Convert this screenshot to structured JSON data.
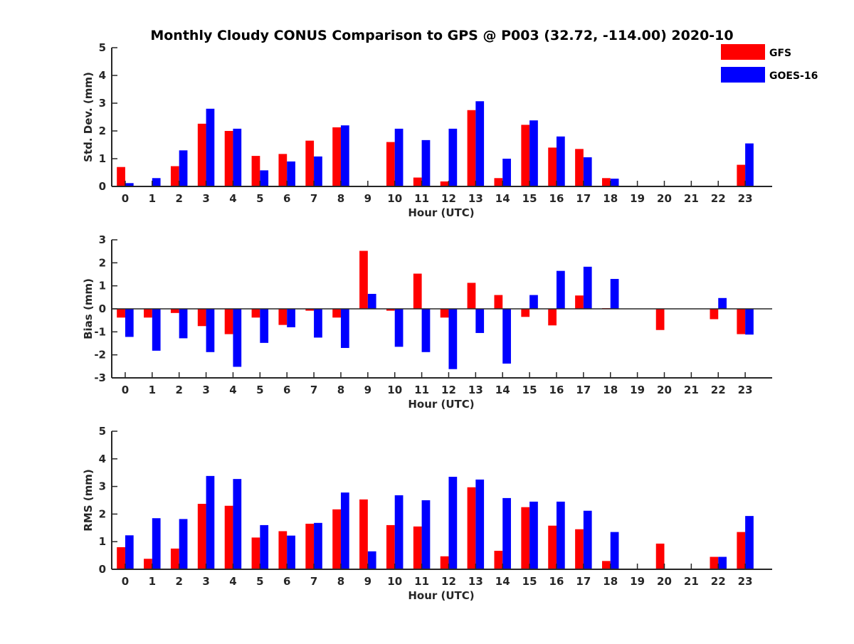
{
  "figure_title": "Monthly Cloudy CONUS Comparison to GPS @ P003 (32.72, -114.00) 2020-10",
  "legend": {
    "placement": "top-right",
    "entries": [
      {
        "label": "GFS",
        "color": "#ff0000"
      },
      {
        "label": "GOES-16",
        "color": "#0000ff"
      }
    ]
  },
  "chart_data": [
    {
      "type": "bar",
      "xlabel": "Hour (UTC)",
      "ylabel": "Std. Dev. (mm)",
      "ylim": [
        0,
        5
      ],
      "yticks": [
        "0",
        "1",
        "2",
        "3",
        "4",
        "5"
      ],
      "categories": [
        "0",
        "1",
        "2",
        "3",
        "4",
        "5",
        "6",
        "7",
        "8",
        "9",
        "10",
        "11",
        "12",
        "13",
        "14",
        "15",
        "16",
        "17",
        "18",
        "19",
        "20",
        "21",
        "22",
        "23"
      ],
      "series": [
        {
          "name": "GFS",
          "color": "#ff0000",
          "values": [
            0.7,
            0,
            0.73,
            2.26,
            2.0,
            1.1,
            1.17,
            1.65,
            2.13,
            0,
            1.6,
            0.32,
            0.18,
            2.75,
            0.3,
            2.22,
            1.4,
            1.35,
            0.3,
            0,
            0,
            0,
            0,
            0.78
          ]
        },
        {
          "name": "GOES-16",
          "color": "#0000ff",
          "values": [
            0.12,
            0.3,
            1.3,
            2.8,
            2.08,
            0.58,
            0.9,
            1.08,
            2.2,
            0,
            2.08,
            1.67,
            2.08,
            3.07,
            1.0,
            2.38,
            1.8,
            1.05,
            0.28,
            0,
            0,
            0,
            0,
            1.55
          ]
        }
      ]
    },
    {
      "type": "bar",
      "xlabel": "Hour (UTC)",
      "ylabel": "Bias (mm)",
      "ylim": [
        -3,
        3
      ],
      "yticks": [
        "-3",
        "-2",
        "-1",
        "0",
        "1",
        "2",
        "3"
      ],
      "categories": [
        "0",
        "1",
        "2",
        "3",
        "4",
        "5",
        "6",
        "7",
        "8",
        "9",
        "10",
        "11",
        "12",
        "13",
        "14",
        "15",
        "16",
        "17",
        "18",
        "19",
        "20",
        "21",
        "22",
        "23"
      ],
      "series": [
        {
          "name": "GFS",
          "color": "#ff0000",
          "values": [
            -0.38,
            -0.38,
            -0.18,
            -0.75,
            -1.1,
            -0.38,
            -0.7,
            -0.08,
            -0.38,
            2.52,
            -0.08,
            1.53,
            -0.38,
            1.13,
            0.6,
            -0.35,
            -0.72,
            0.58,
            0.03,
            0,
            -0.92,
            0,
            -0.45,
            -1.1
          ]
        },
        {
          "name": "GOES-16",
          "color": "#0000ff",
          "values": [
            -1.22,
            -1.82,
            -1.28,
            -1.88,
            -2.52,
            -1.48,
            -0.8,
            -1.25,
            -1.7,
            0.65,
            -1.65,
            -1.88,
            -2.62,
            -1.05,
            -2.38,
            0.6,
            1.65,
            1.83,
            1.3,
            0,
            0,
            0,
            0.47,
            -1.12
          ]
        }
      ]
    },
    {
      "type": "bar",
      "xlabel": "Hour (UTC)",
      "ylabel": "RMS (mm)",
      "ylim": [
        0,
        5
      ],
      "yticks": [
        "0",
        "1",
        "2",
        "3",
        "4",
        "5"
      ],
      "categories": [
        "0",
        "1",
        "2",
        "3",
        "4",
        "5",
        "6",
        "7",
        "8",
        "9",
        "10",
        "11",
        "12",
        "13",
        "14",
        "15",
        "16",
        "17",
        "18",
        "19",
        "20",
        "21",
        "22",
        "23"
      ],
      "series": [
        {
          "name": "GFS",
          "color": "#ff0000",
          "values": [
            0.8,
            0.38,
            0.75,
            2.37,
            2.3,
            1.15,
            1.38,
            1.65,
            2.17,
            2.53,
            1.6,
            1.55,
            0.47,
            2.97,
            0.67,
            2.25,
            1.58,
            1.45,
            0.3,
            0,
            0.93,
            0,
            0.45,
            1.35
          ]
        },
        {
          "name": "GOES-16",
          "color": "#0000ff",
          "values": [
            1.23,
            1.85,
            1.82,
            3.38,
            3.27,
            1.6,
            1.22,
            1.68,
            2.78,
            0.65,
            2.68,
            2.5,
            3.35,
            3.25,
            2.58,
            2.45,
            2.45,
            2.12,
            1.35,
            0,
            0,
            0,
            0.45,
            1.93
          ]
        }
      ]
    }
  ]
}
